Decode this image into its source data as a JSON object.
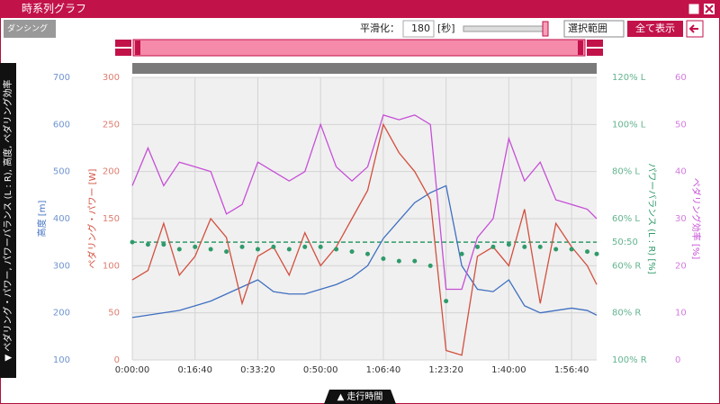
{
  "window": {
    "title": "時系列グラフ"
  },
  "toolbar": {
    "logo": "ダンシング",
    "smoothing_label": "平滑化：",
    "smoothing_value": "180",
    "smoothing_unit": "[秒]",
    "range_select": "選択範囲",
    "show_all": "全て表示"
  },
  "side_label": "▼ ペダリング・パワー, パワーバランス (L : R), 高度, ペダリング効率",
  "bottom_tab": "▲ 走行時間",
  "chart_data": {
    "type": "line",
    "x": [
      0,
      250,
      500,
      750,
      1000,
      1250,
      1500,
      1750,
      2000,
      2250,
      2500,
      2750,
      3000,
      3250,
      3500,
      3750,
      4000,
      4250,
      4500,
      4750,
      5000,
      5250,
      5500,
      5750,
      6000,
      6250,
      6500,
      6750,
      7000,
      7250,
      7400
    ],
    "xlim": [
      0,
      7400
    ],
    "xticks": [
      {
        "value": 0,
        "label": "0:00:00"
      },
      {
        "value": 1000,
        "label": "0:16:40"
      },
      {
        "value": 2000,
        "label": "0:33:20"
      },
      {
        "value": 3000,
        "label": "0:50:00"
      },
      {
        "value": 4000,
        "label": "1:06:40"
      },
      {
        "value": 5000,
        "label": "1:23:20"
      },
      {
        "value": 6000,
        "label": "1:40:00"
      },
      {
        "value": 7000,
        "label": "1:56:40"
      }
    ],
    "grid": true,
    "grid_axis": 1,
    "axes": [
      {
        "label": "高度 [m]",
        "color": "#3f6fc0",
        "lim": [
          100,
          700
        ],
        "ticks": [
          100,
          200,
          300,
          400,
          500,
          600,
          700
        ]
      },
      {
        "label": "ペダリング・パワー [W]",
        "color": "#d2503f",
        "lim": [
          0,
          300
        ],
        "ticks": [
          0,
          50,
          100,
          150,
          200,
          250,
          300
        ]
      },
      {
        "label": "パワーバランス (L : R) [%]",
        "color": "#2f9a6a",
        "lim": [
          0,
          120
        ],
        "ticks": [
          {
            "value": 0,
            "label": "100% R"
          },
          {
            "value": 20,
            "label": "80% R"
          },
          {
            "value": 40,
            "label": "60% R"
          },
          {
            "value": 50,
            "label": "50:50"
          },
          {
            "value": 60,
            "label": "60% L"
          },
          {
            "value": 80,
            "label": "80% L"
          },
          {
            "value": 100,
            "label": "100% L"
          },
          {
            "value": 120,
            "label": "120% L"
          }
        ]
      },
      {
        "label": "ペダリング効率 [%]",
        "color": "#c64fd6",
        "lim": [
          0,
          60
        ],
        "ticks": [
          0,
          10,
          20,
          30,
          40,
          50,
          60
        ]
      }
    ],
    "series": [
      {
        "axis": 0,
        "color": "#3f6fc0",
        "style": "line",
        "values": [
          190,
          195,
          200,
          205,
          215,
          225,
          240,
          255,
          270,
          245,
          240,
          240,
          250,
          260,
          275,
          300,
          358,
          396,
          434,
          455,
          470,
          300,
          250,
          245,
          270,
          215,
          200,
          205,
          210,
          205,
          195
        ]
      },
      {
        "axis": 1,
        "color": "#d2503f",
        "style": "line",
        "values": [
          85,
          95,
          145,
          90,
          110,
          150,
          130,
          60,
          110,
          120,
          90,
          135,
          100,
          120,
          150,
          180,
          250,
          220,
          200,
          170,
          10,
          5,
          110,
          120,
          100,
          160,
          60,
          145,
          120,
          100,
          80
        ]
      },
      {
        "axis": 3,
        "color": "#c64fd6",
        "style": "line",
        "values": [
          37,
          45,
          37,
          42,
          41,
          40,
          31,
          33,
          42,
          40,
          38,
          40,
          50,
          41,
          38,
          41,
          52,
          51,
          52,
          50,
          15,
          15,
          26,
          30,
          47,
          38,
          42,
          34,
          33,
          32,
          30
        ]
      },
      {
        "axis": 2,
        "color": "#2f9a6a",
        "style": "dots",
        "values": [
          50,
          49,
          49,
          47,
          48,
          47,
          46,
          48,
          47,
          48,
          47,
          48,
          48,
          47,
          46,
          45,
          43,
          42,
          42,
          40,
          25,
          45,
          48,
          48,
          49,
          48,
          48,
          47,
          47,
          46,
          45
        ]
      }
    ],
    "reference": {
      "axis": 2,
      "value": 50,
      "color": "#2f9a6a"
    }
  }
}
